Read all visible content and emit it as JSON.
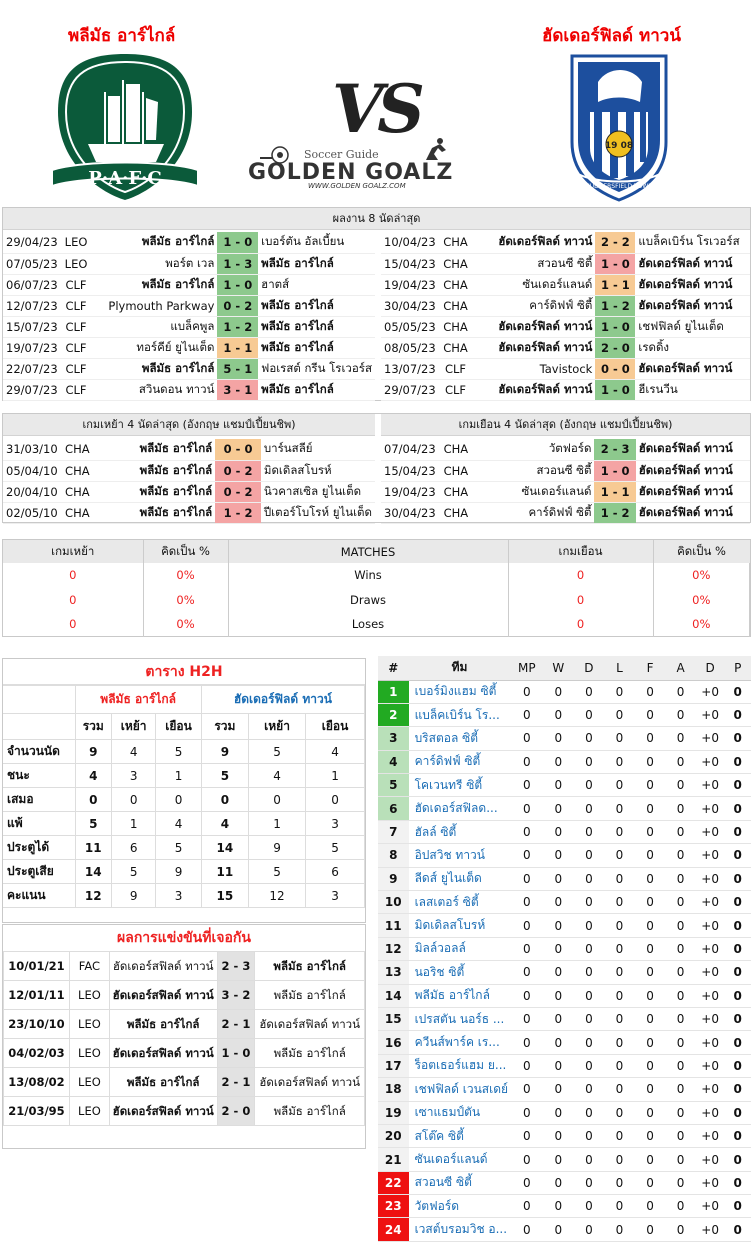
{
  "header": {
    "home": "พลีมัธ อาร์ไกล์",
    "away": "ฮัดเดอร์ฟิลด์ ทาวน์",
    "vs": "VS",
    "brand_top": "Soccer Guide",
    "brand": "GOLDEN GOALZ",
    "brand_url": "WWW.GOLDEN GOALZ.COM",
    "home_crest": "P·A·F·C",
    "away_crest": "HUDDERSFIELD TOWN",
    "away_year": "19 08"
  },
  "last8": {
    "title": "ผลงาน 8 นัดล่าสุด",
    "home": [
      [
        "29/04/23",
        "LEO",
        "พลีมัธ อาร์ไกล์",
        "1 - 0",
        "เบอร์ตัน อัลเบี้ยน",
        "g",
        1
      ],
      [
        "07/05/23",
        "LEO",
        "พอร์ต เวล",
        "1 - 3",
        "พลีมัธ อาร์ไกล์",
        "g",
        2
      ],
      [
        "06/07/23",
        "CLF",
        "พลีมัธ อาร์ไกล์",
        "1 - 0",
        "ฮาตส์",
        "g",
        1
      ],
      [
        "12/07/23",
        "CLF",
        "Plymouth Parkway",
        "0 - 2",
        "พลีมัธ อาร์ไกล์",
        "g",
        2
      ],
      [
        "15/07/23",
        "CLF",
        "แบล็คพูล",
        "1 - 2",
        "พลีมัธ อาร์ไกล์",
        "g",
        2
      ],
      [
        "19/07/23",
        "CLF",
        "ทอร์คีย์ ยูไนเต็ด",
        "1 - 1",
        "พลีมัธ อาร์ไกล์",
        "o",
        2
      ],
      [
        "22/07/23",
        "CLF",
        "พลีมัธ อาร์ไกล์",
        "5 - 1",
        "ฟอเรสต์ กรีน โรเวอร์ส",
        "g",
        1
      ],
      [
        "29/07/23",
        "CLF",
        "สวินดอน ทาวน์",
        "3 - 1",
        "พลีมัธ อาร์ไกล์",
        "rd",
        2
      ]
    ],
    "away": [
      [
        "10/04/23",
        "CHA",
        "ฮัดเดอร์ฟิลด์ ทาวน์",
        "2 - 2",
        "แบล็คเบิร์น โรเวอร์ส",
        "o",
        1
      ],
      [
        "15/04/23",
        "CHA",
        "สวอนซี ซิตี้",
        "1 - 0",
        "ฮัดเดอร์ฟิลด์ ทาวน์",
        "rd",
        2
      ],
      [
        "19/04/23",
        "CHA",
        "ซันเดอร์แลนด์",
        "1 - 1",
        "ฮัดเดอร์ฟิลด์ ทาวน์",
        "o",
        2
      ],
      [
        "30/04/23",
        "CHA",
        "คาร์ดิฟฟ์ ซิตี้",
        "1 - 2",
        "ฮัดเดอร์ฟิลด์ ทาวน์",
        "g",
        2
      ],
      [
        "05/05/23",
        "CHA",
        "ฮัดเดอร์ฟิลด์ ทาวน์",
        "1 - 0",
        "เชฟฟิลด์ ยูไนเต็ด",
        "g",
        1
      ],
      [
        "08/05/23",
        "CHA",
        "ฮัดเดอร์ฟิลด์ ทาวน์",
        "2 - 0",
        "เรดดิ้ง",
        "g",
        1
      ],
      [
        "13/07/23",
        "CLF",
        "Tavistock",
        "0 - 0",
        "ฮัดเดอร์ฟิลด์ ทาวน์",
        "o",
        2
      ],
      [
        "29/07/23",
        "CLF",
        "ฮัดเดอร์ฟิลด์ ทาวน์",
        "1 - 0",
        "ฮีเรนวีน",
        "g",
        1
      ]
    ]
  },
  "last4": {
    "home_title": "เกมเหย้า 4 นัดล่าสุด (อังกฤษ แชมป์เปี้ยนชิพ)",
    "away_title": "เกมเยือน 4 นัดล่าสุด (อังกฤษ แชมป์เปี้ยนชิพ)",
    "home": [
      [
        "31/03/10",
        "CHA",
        "พลีมัธ อาร์ไกล์",
        "0 - 0",
        "บาร์นสลีย์",
        "o",
        1
      ],
      [
        "05/04/10",
        "CHA",
        "พลีมัธ อาร์ไกล์",
        "0 - 2",
        "มิดเดิลสโบรห์",
        "rd",
        1
      ],
      [
        "20/04/10",
        "CHA",
        "พลีมัธ อาร์ไกล์",
        "0 - 2",
        "นิวคาสเซิล ยูไนเต็ด",
        "rd",
        1
      ],
      [
        "02/05/10",
        "CHA",
        "พลีมัธ อาร์ไกล์",
        "1 - 2",
        "ปีเตอร์โบโรห์ ยูไนเต็ด",
        "rd",
        1
      ]
    ],
    "away": [
      [
        "07/04/23",
        "CHA",
        "วัตฟอร์ด",
        "2 - 3",
        "ฮัดเดอร์ฟิลด์ ทาวน์",
        "g",
        2
      ],
      [
        "15/04/23",
        "CHA",
        "สวอนซี ซิตี้",
        "1 - 0",
        "ฮัดเดอร์ฟิลด์ ทาวน์",
        "rd",
        2
      ],
      [
        "19/04/23",
        "CHA",
        "ซันเดอร์แลนด์",
        "1 - 1",
        "ฮัดเดอร์ฟิลด์ ทาวน์",
        "o",
        2
      ],
      [
        "30/04/23",
        "CHA",
        "คาร์ดิฟฟ์ ซิตี้",
        "1 - 2",
        "ฮัดเดอร์ฟิลด์ ทาวน์",
        "g",
        2
      ]
    ]
  },
  "summary": {
    "h1": "เกมเหย้า",
    "h2": "คิดเป็น %",
    "h3": "MATCHES",
    "h4": "เกมเยือน",
    "h5": "คิดเป็น %",
    "rows": [
      [
        "0",
        "0%",
        "Wins",
        "0",
        "0%"
      ],
      [
        "0",
        "0%",
        "Draws",
        "0",
        "0%"
      ],
      [
        "0",
        "0%",
        "Loses",
        "0",
        "0%"
      ]
    ]
  },
  "h2h": {
    "title": "ตาราง H2H",
    "home": "พลีมัธ อาร์ไกล์",
    "away": "ฮัดเดอร์ฟิลด์ ทาวน์",
    "cols": [
      "รวม",
      "เหย้า",
      "เยือน",
      "รวม",
      "เหย้า",
      "เยือน"
    ],
    "rows": [
      [
        "จำนวนนัด",
        "9",
        "4",
        "5",
        "9",
        "5",
        "4"
      ],
      [
        "ชนะ",
        "4",
        "3",
        "1",
        "5",
        "4",
        "1"
      ],
      [
        "เสมอ",
        "0",
        "0",
        "0",
        "0",
        "0",
        "0"
      ],
      [
        "แพ้",
        "5",
        "1",
        "4",
        "4",
        "1",
        "3"
      ],
      [
        "ประตูได้",
        "11",
        "6",
        "5",
        "14",
        "9",
        "5"
      ],
      [
        "ประตูเสีย",
        "14",
        "5",
        "9",
        "11",
        "5",
        "6"
      ],
      [
        "คะแนน",
        "12",
        "9",
        "3",
        "15",
        "12",
        "3"
      ]
    ]
  },
  "meet": {
    "title": "ผลการแข่งขันที่เจอกัน",
    "rows": [
      [
        "10/01/21",
        "FAC",
        "ฮัดเดอร์สฟิลด์ ทาวน์",
        "2 - 3",
        "พลีมัธ อาร์ไกล์",
        2
      ],
      [
        "12/01/11",
        "LEO",
        "ฮัดเดอร์สฟิลด์ ทาวน์",
        "3 - 2",
        "พลีมัธ อาร์ไกล์",
        1
      ],
      [
        "23/10/10",
        "LEO",
        "พลีมัธ อาร์ไกล์",
        "2 - 1",
        "ฮัดเดอร์สฟิลด์ ทาวน์",
        1
      ],
      [
        "04/02/03",
        "LEO",
        "ฮัดเดอร์สฟิลด์ ทาวน์",
        "1 - 0",
        "พลีมัธ อาร์ไกล์",
        1
      ],
      [
        "13/08/02",
        "LEO",
        "พลีมัธ อาร์ไกล์",
        "2 - 1",
        "ฮัดเดอร์สฟิลด์ ทาวน์",
        1
      ],
      [
        "21/03/95",
        "LEO",
        "ฮัดเดอร์สฟิลด์ ทาวน์",
        "2 - 0",
        "พลีมัธ อาร์ไกล์",
        1
      ]
    ]
  },
  "standings": {
    "cols": [
      "#",
      "ทีม",
      "MP",
      "W",
      "D",
      "L",
      "F",
      "A",
      "D",
      "P"
    ],
    "rows": [
      [
        "1",
        "เบอร์มิงแฮม ซิตี้",
        "rk1"
      ],
      [
        "2",
        "แบล็คเบิร์น โร...",
        "rk1"
      ],
      [
        "3",
        "บริสตอล ซิตี้",
        "rk2"
      ],
      [
        "4",
        "คาร์ดิฟฟ์ ซิตี้",
        "rk2"
      ],
      [
        "5",
        "โคเวนทรี ซิตี้",
        "rk2"
      ],
      [
        "6",
        "ฮัดเดอร์สฟิลด...",
        "rk2"
      ],
      [
        "7",
        "ฮัลล์ ซิตี้",
        "rk3"
      ],
      [
        "8",
        "อิปสวิช ทาวน์",
        "rk3"
      ],
      [
        "9",
        "ลีดส์ ยูไนเต็ด",
        "rk3"
      ],
      [
        "10",
        "เลสเตอร์ ซิตี้",
        "rk3"
      ],
      [
        "11",
        "มิดเดิลสโบรห์",
        "rk3"
      ],
      [
        "12",
        "มิลล์วอลล์",
        "rk3"
      ],
      [
        "13",
        "นอริช ซิตี้",
        "rk3"
      ],
      [
        "14",
        "พลีมัธ อาร์ไกล์",
        "rk3"
      ],
      [
        "15",
        "เปรสตัน นอร์ธ ...",
        "rk3"
      ],
      [
        "16",
        "ควีนส์พาร์ค เร...",
        "rk3"
      ],
      [
        "17",
        "ร็อตเธอร์แฮม ย...",
        "rk3"
      ],
      [
        "18",
        "เชฟฟิลด์ เวนสเดย์",
        "rk3"
      ],
      [
        "19",
        "เซาแธมป์ตัน",
        "rk3"
      ],
      [
        "20",
        "สโต๊ค ซิตี้",
        "rk3"
      ],
      [
        "21",
        "ซันเดอร์แลนด์",
        "rk3"
      ],
      [
        "22",
        "สวอนซี ซิตี้",
        "rk4"
      ],
      [
        "23",
        "วัตฟอร์ด",
        "rk4"
      ],
      [
        "24",
        "เวสต์บรอมวิช อ...",
        "rk4"
      ]
    ],
    "mp": "0",
    "w": "0",
    "d": "0",
    "l": "0",
    "f": "0",
    "a": "0",
    "gd": "+0",
    "p": "0"
  }
}
